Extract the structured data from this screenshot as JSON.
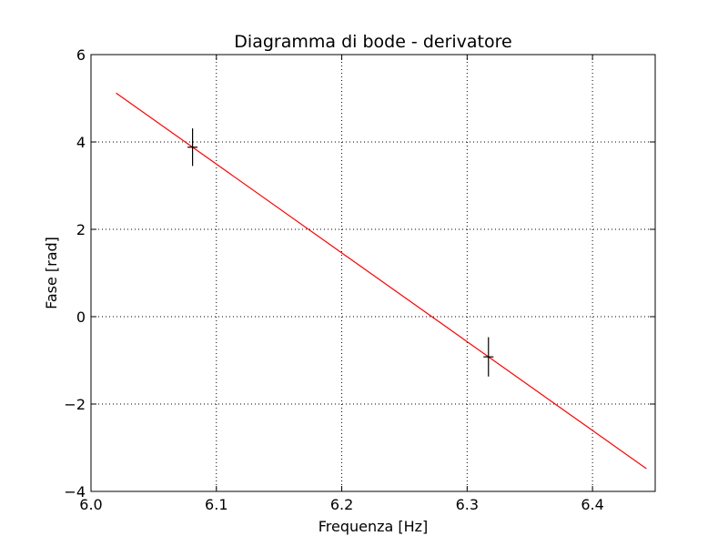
{
  "chart_data": {
    "type": "scatter",
    "title": "Diagramma di bode - derivatore",
    "xlabel": "Frequenza [Hz]",
    "ylabel": "Fase [rad]",
    "xlim": [
      6.0,
      6.45
    ],
    "ylim": [
      -4,
      6
    ],
    "xticks": [
      6.0,
      6.1,
      6.2,
      6.3,
      6.4
    ],
    "xtick_labels": [
      "6.0",
      "6.1",
      "6.2",
      "6.3",
      "6.4"
    ],
    "yticks": [
      -4,
      -2,
      0,
      2,
      4,
      6
    ],
    "ytick_labels": [
      "−4",
      "−2",
      "0",
      "2",
      "4",
      "6"
    ],
    "grid": true,
    "fit_line": {
      "color": "#ff0000",
      "x": [
        6.02,
        6.443
      ],
      "y": [
        5.12,
        -3.48
      ]
    },
    "points": {
      "color": "#000000",
      "marker": "+",
      "x": [
        6.081,
        6.317
      ],
      "y": [
        3.88,
        -0.92
      ],
      "yerr": [
        0.43,
        0.45
      ],
      "xerr": [
        0.004,
        0.004
      ]
    }
  }
}
